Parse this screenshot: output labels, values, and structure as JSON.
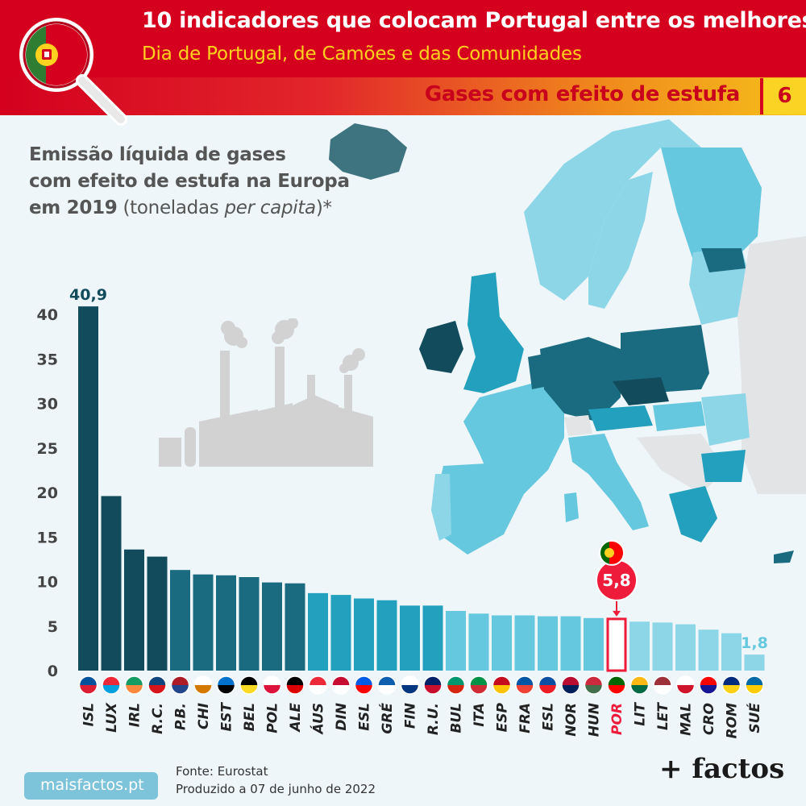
{
  "header": {
    "title": "10 indicadores que colocam Portugal entre os melhores",
    "subtitle": "Dia de Portugal, de Camões e das Comunidades",
    "section_title": "Gases com efeito de estufa",
    "section_number": "6",
    "colors": {
      "red": "#d4001e",
      "yellow": "#ffd21f"
    }
  },
  "chart_title": {
    "line1": "Emissão líquida de gases",
    "line2": "com efeito de estufa na Europa",
    "line3_bold": "em 2019",
    "line3_rest_a": " (toneladas ",
    "line3_italic": "per capita",
    "line3_rest_b": ")*"
  },
  "chart_data": {
    "type": "bar",
    "ylim": [
      0,
      42
    ],
    "yticks": [
      0,
      5,
      10,
      15,
      20,
      25,
      30,
      35,
      40
    ],
    "categories": [
      "ISL",
      "LUX",
      "IRL",
      "R.C.",
      "P.B.",
      "CHI",
      "EST",
      "BEL",
      "POL",
      "ALE",
      "ÁUS",
      "DIN",
      "ESL",
      "GRÉ",
      "FIN",
      "R.U.",
      "BUL",
      "ITA",
      "ESP",
      "FRA",
      "ESL",
      "NOR",
      "HUN",
      "POR",
      "LIT",
      "LET",
      "MAL",
      "CRO",
      "ROM",
      "SUÉ"
    ],
    "values": [
      40.9,
      19.6,
      13.6,
      12.8,
      11.3,
      10.8,
      10.7,
      10.5,
      9.9,
      9.8,
      8.7,
      8.5,
      8.1,
      7.9,
      7.3,
      7.3,
      6.7,
      6.4,
      6.2,
      6.2,
      6.1,
      6.1,
      5.9,
      5.8,
      5.5,
      5.4,
      5.2,
      4.6,
      4.2,
      1.8
    ],
    "value_labels": {
      "ISL": "40,9",
      "POR": "5,8",
      "SUÉ": "1,8"
    },
    "highlight": "POR",
    "flags": [
      "iceland",
      "luxembourg",
      "ireland",
      "czechia",
      "netherlands",
      "cyprus",
      "estonia",
      "belgium",
      "poland",
      "germany",
      "austria",
      "denmark",
      "slovenia",
      "greece",
      "finland",
      "united-kingdom",
      "bulgaria",
      "italy",
      "spain",
      "france",
      "slovakia",
      "norway",
      "hungary",
      "portugal",
      "lithuania",
      "latvia",
      "malta",
      "croatia",
      "romania",
      "sweden"
    ],
    "color_tiers": {
      "darkest": "#124b5c",
      "dark": "#1b6b80",
      "mid": "#23a0bd",
      "light": "#66c8de",
      "lightest": "#8dd6e8",
      "highlight": "#ee1c3a"
    }
  },
  "footer": {
    "site": "maisfactos.pt",
    "source": "Fonte: Eurostat",
    "produced": "Produzido a 07 de junho de 2022",
    "brand": "+ factos"
  }
}
